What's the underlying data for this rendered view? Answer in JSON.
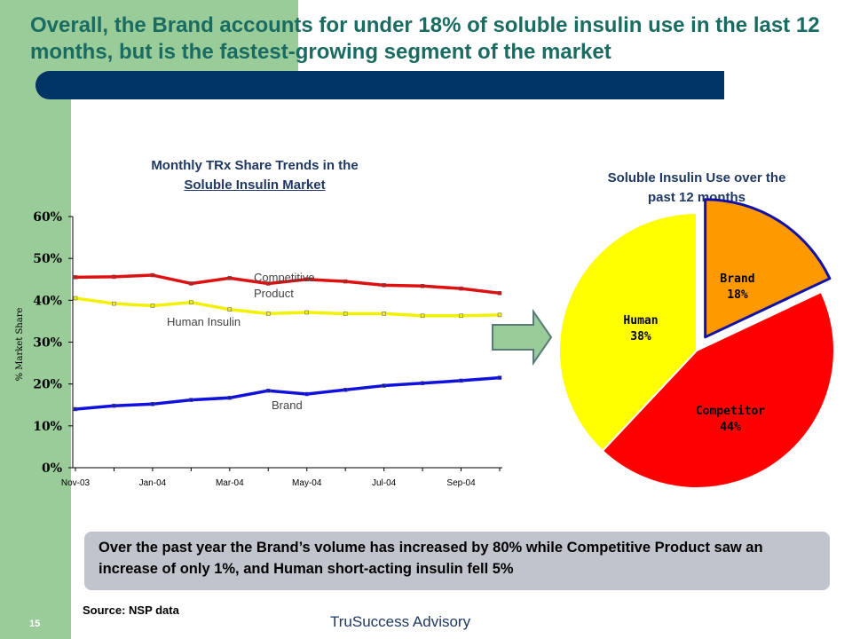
{
  "slide": {
    "title": "Overall, the Brand accounts for under 18% of soluble insulin use in the last 12 months, but is the fastest-growing segment of the market",
    "callout": "Over the past year the Brand’s volume has increased by 80% while Competitive Product saw an increase of only 1%, and Human short-acting insulin fell 5%",
    "source": "Source: NSP data",
    "page_number": "15",
    "footer": "TruSuccess Advisory",
    "colors": {
      "title": "#1a6b61",
      "green_strip": "#99cc99",
      "navy_bar": "#003366",
      "callout_bg": "#c0c4cc"
    },
    "icons": [
      "right-arrow-icon"
    ]
  },
  "chart_data": [
    {
      "type": "line",
      "title_line1": "Monthly TRx Share Trends in the",
      "title_line2": "Soluble Insulin Market",
      "ylabel": "% Market Share",
      "ylim": [
        0,
        60
      ],
      "yticks": [
        "0%",
        "10%",
        "20%",
        "30%",
        "40%",
        "50%",
        "60%"
      ],
      "x": [
        "Nov-03",
        "Dec-03",
        "Jan-04",
        "Feb-04",
        "Mar-04",
        "Apr-04",
        "May-04",
        "Jun-04",
        "Jul-04",
        "Aug-04",
        "Sep-04",
        "Oct-04"
      ],
      "xtick_labels": [
        "Nov-03",
        "Jan-04",
        "Mar-04",
        "May-04",
        "Jul-04",
        "Sep-04"
      ],
      "series": [
        {
          "name": "Competitive Product",
          "color": "#dd1111",
          "label_line1": "Competitive",
          "label_line2": "Product",
          "values": [
            45.5,
            45.6,
            46.0,
            44.0,
            45.3,
            44.0,
            45.0,
            44.5,
            43.6,
            43.4,
            42.8,
            41.7
          ]
        },
        {
          "name": "Human Insulin",
          "color": "#f2f200",
          "label_line1": "Human Insulin",
          "values": [
            40.5,
            39.2,
            38.7,
            39.5,
            37.8,
            36.8,
            37.1,
            36.8,
            36.8,
            36.3,
            36.3,
            36.5
          ]
        },
        {
          "name": "Brand",
          "color": "#1111dd",
          "label_line1": "Brand",
          "values": [
            14.0,
            14.8,
            15.2,
            16.2,
            16.7,
            18.4,
            17.6,
            18.6,
            19.6,
            20.2,
            20.8,
            21.5
          ]
        }
      ]
    },
    {
      "type": "pie",
      "title_line1": "Soluble Insulin Use over the",
      "title_line2": "past 12 months",
      "slices": [
        {
          "name": "Brand",
          "percent_label": "18%",
          "value": 18,
          "color": "#ff9900"
        },
        {
          "name": "Competitor",
          "percent_label": "44%",
          "value": 44,
          "color": "#ff0000"
        },
        {
          "name": "Human",
          "percent_label": "38%",
          "value": 38,
          "color": "#ffff00"
        }
      ]
    }
  ]
}
